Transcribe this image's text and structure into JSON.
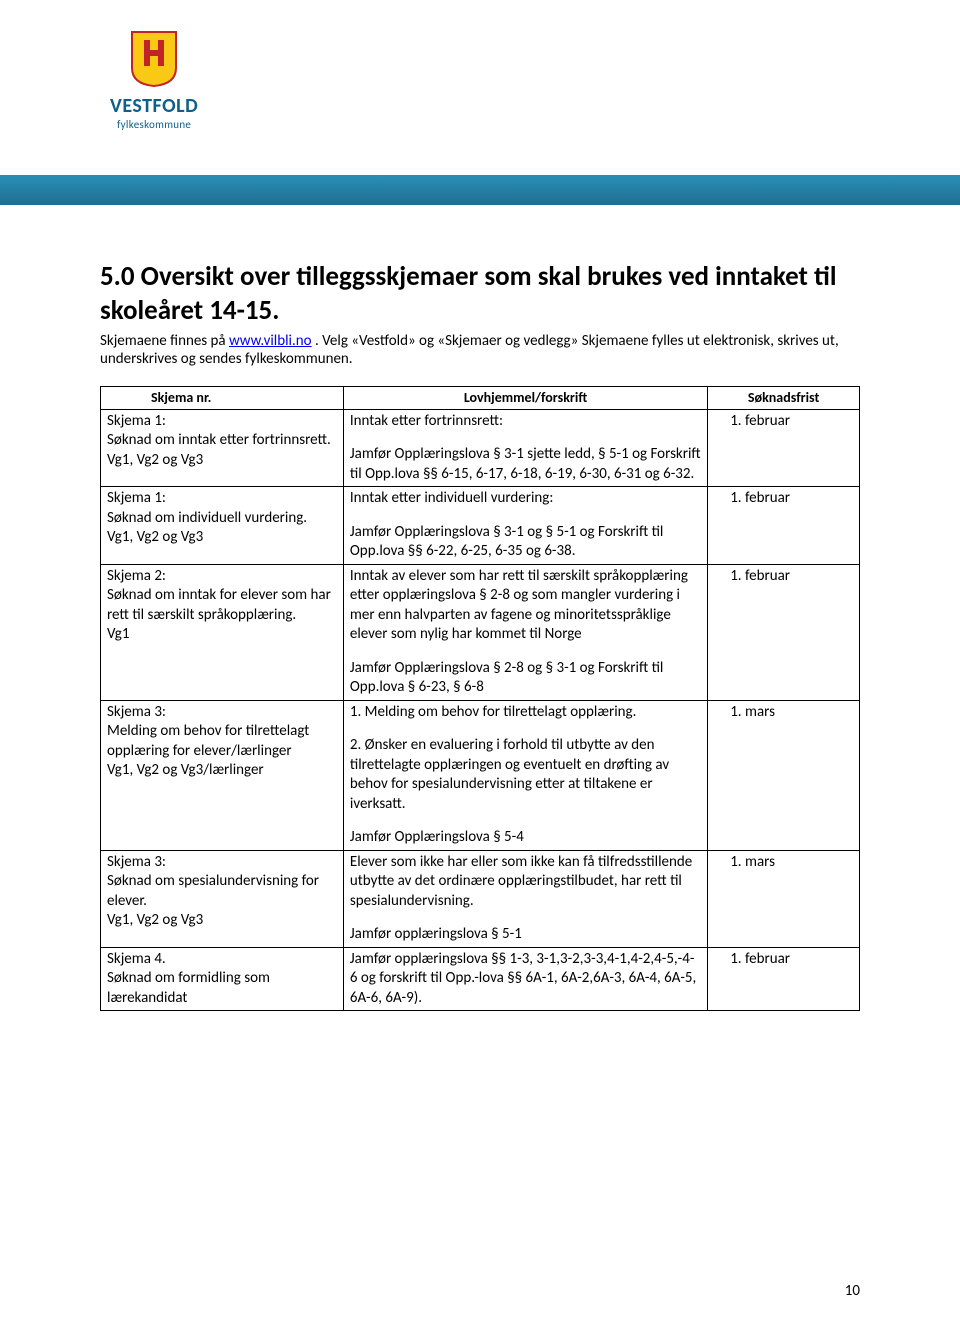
{
  "brand": {
    "main": "VESTFOLD",
    "sub": "fylkeskommune",
    "color": "#0f5f8a",
    "bar_color": "#2786ac"
  },
  "heading": "5.0 Oversikt over tilleggsskjemaer som skal brukes ved inntaket til skoleåret 14-15.",
  "intro_pre": "Skjemaene finnes på ",
  "intro_link": "www.vilbli.no",
  "intro_post": " . Velg «Vestfold» og «Skjemaer og vedlegg» Skjemaene fylles ut elektronisk, skrives ut, underskrives og sendes fylkeskommunen.",
  "table": {
    "headers": [
      "Skjema nr.",
      "Lovhjemmel/forskrift",
      "Søknadsfrist"
    ],
    "rows": [
      {
        "nr": "Skjema 1:\nSøknad om inntak etter fortrinnsrett.\nVg1, Vg2 og Vg3",
        "lov": "Inntak etter fortrinnsrett:\n\nJamfør Opplæringslova § 3-1 sjette ledd, § 5-1 og Forskrift til Opp.lova §§ 6-15, 6-17, 6-18, 6-19, 6-30, 6-31 og 6-32.",
        "frist": "1.   februar"
      },
      {
        "nr": "Skjema 1:\nSøknad om individuell vurdering.\nVg1, Vg2 og Vg3",
        "lov": "Inntak etter individuell vurdering:\n\nJamfør Opplæringslova § 3-1 og § 5-1 og Forskrift til Opp.lova §§ 6-22, 6-25, 6-35 og 6-38.",
        "frist": "1.   februar"
      },
      {
        "nr": "Skjema 2:\nSøknad om inntak for elever som har rett til særskilt språkopplæring.\nVg1",
        "lov": "Inntak av elever som har rett til særskilt språkopplæring etter opplæringslova § 2-8 og som mangler vurdering i mer enn halvparten av fagene og minoritetsspråklige elever som nylig har kommet til Norge\n\nJamfør Opplæringslova § 2-8 og § 3-1 og Forskrift til Opp.lova § 6-23, § 6-8",
        "frist": "1.   februar"
      },
      {
        "nr": "Skjema 3:\nMelding om behov for tilrettelagt opplæring for elever/lærlinger\nVg1, Vg2 og Vg3/lærlinger",
        "lov": "1. Melding om behov for tilrettelagt opplæring.\n\n2. Ønsker en evaluering i forhold til utbytte av den tilrettelagte opplæringen og eventuelt en drøfting av behov for spesialundervisning etter at tiltakene er iverksatt.\n\nJamfør Opplæringslova § 5-4",
        "frist": "1.   mars"
      },
      {
        "nr": "Skjema 3:\nSøknad om spesialundervisning for elever.\nVg1, Vg2 og Vg3",
        "lov": "Elever som ikke har eller som ikke kan få tilfredsstillende utbytte av det ordinære opplæringstilbudet, har rett til spesialundervisning.\n\nJamfør opplæringslova § 5-1",
        "frist": "1.   mars"
      },
      {
        "nr": "Skjema 4.\nSøknad om formidling som lærekandidat",
        "lov": "Jamfør opplæringslova §§ 1-3, 3-1,3-2,3-3,4-1,4-2,4-5,-4-6 og forskrift til Opp.-lova §§ 6A-1, 6A-2,6A-3, 6A-4, 6A-5, 6A-6, 6A-9).",
        "frist": "1.   februar"
      }
    ]
  },
  "page_number": "10"
}
